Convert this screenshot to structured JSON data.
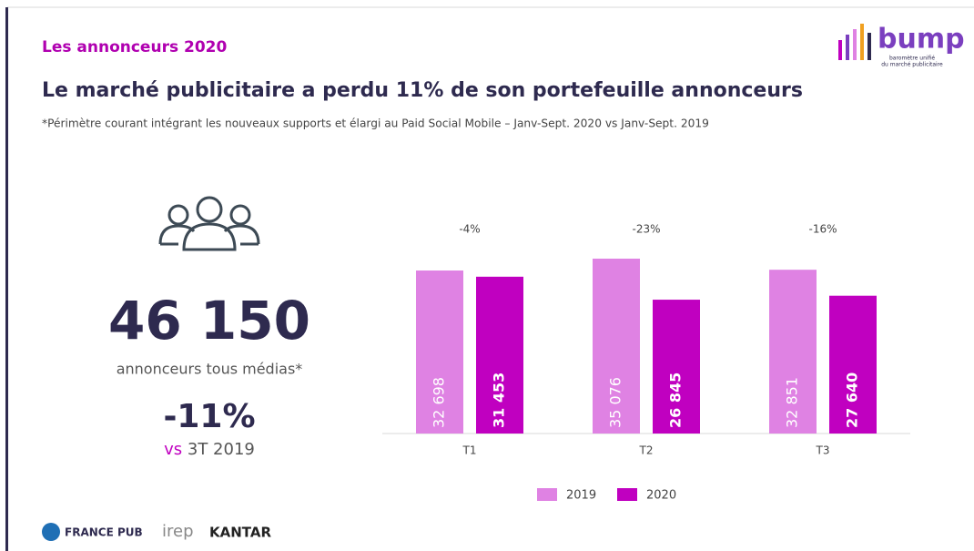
{
  "section": "Les annonceurs 2020",
  "title": "Le marché publicitaire a perdu 11% de son portefeuille annonceurs",
  "subtitle": "*Périmètre courant intégrant les nouveaux supports et élargi au Paid Social Mobile – Janv-Sept. 2020 vs Janv-Sept. 2019",
  "kpi": {
    "number": "46 150",
    "label": "annonceurs tous médias*",
    "change": "-11%",
    "vs": "vs",
    "period": "3T 2019"
  },
  "logo": {
    "name": "bump",
    "tagline_1": "baromètre unifié",
    "tagline_2": "du marché publicitaire"
  },
  "footer": {
    "logo_1": "FRANCE PUB",
    "logo_2": "irep",
    "logo_3": "KANTAR"
  },
  "chart_data": {
    "type": "bar",
    "categories": [
      "T1",
      "T2",
      "T3"
    ],
    "annotations": [
      "-4%",
      "-23%",
      "-16%"
    ],
    "series": [
      {
        "name": "2019",
        "color": "#df82e3",
        "values": [
          32698,
          35076,
          32851
        ],
        "value_labels": [
          "32 698",
          "35 076",
          "32 851"
        ]
      },
      {
        "name": "2020",
        "color": "#c000c0",
        "values": [
          31453,
          26845,
          27640
        ],
        "value_labels": [
          "31 453",
          "26 845",
          "27 640"
        ]
      }
    ],
    "legend": "bottom"
  }
}
